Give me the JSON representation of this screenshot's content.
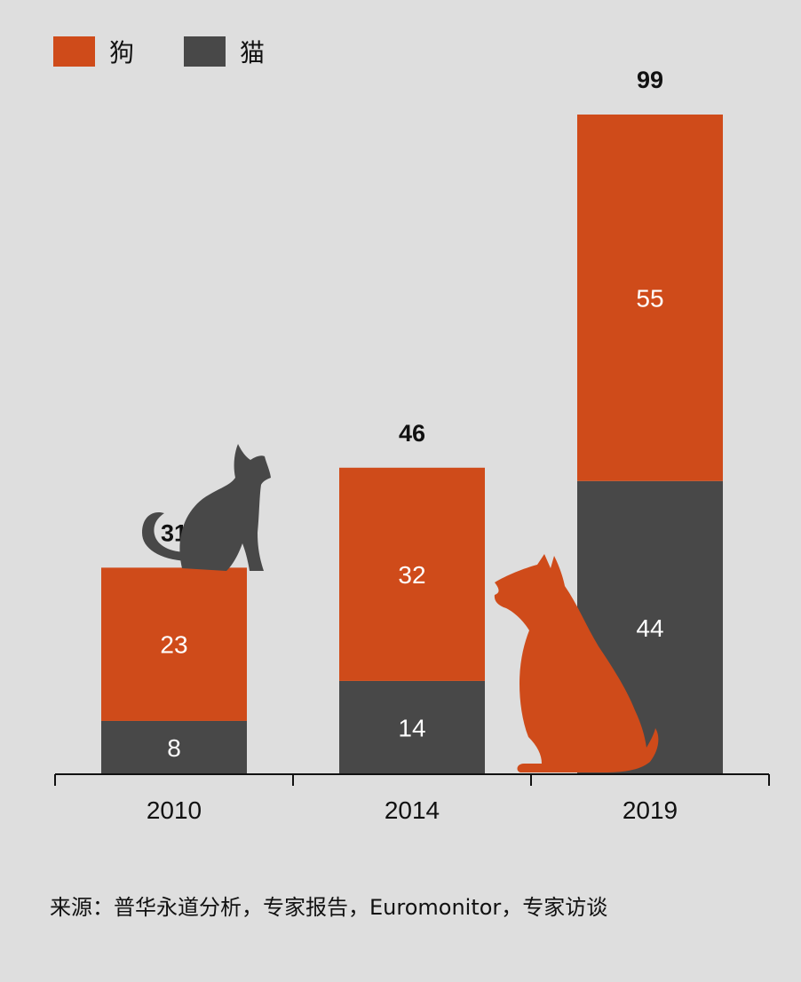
{
  "legend": {
    "items": [
      {
        "label": "狗",
        "color": "#cf4b1a"
      },
      {
        "label": "猫",
        "color": "#484848"
      }
    ]
  },
  "chart_data": {
    "type": "bar",
    "stacked": true,
    "categories": [
      "2010",
      "2014",
      "2019"
    ],
    "series": [
      {
        "name": "猫",
        "values": [
          8,
          14,
          44
        ],
        "color": "#484848"
      },
      {
        "name": "狗",
        "values": [
          23,
          32,
          55
        ],
        "color": "#cf4b1a"
      }
    ],
    "totals": [
      31,
      46,
      99
    ],
    "ylim": [
      0,
      99
    ],
    "grid": false
  },
  "illustrations": {
    "cat": {
      "icon": "cat-silhouette-icon",
      "color": "#484848"
    },
    "dog": {
      "icon": "dog-silhouette-icon",
      "color": "#cf4b1a"
    }
  },
  "source": "来源：普华永道分析，专家报告，Euromonitor，专家访谈"
}
